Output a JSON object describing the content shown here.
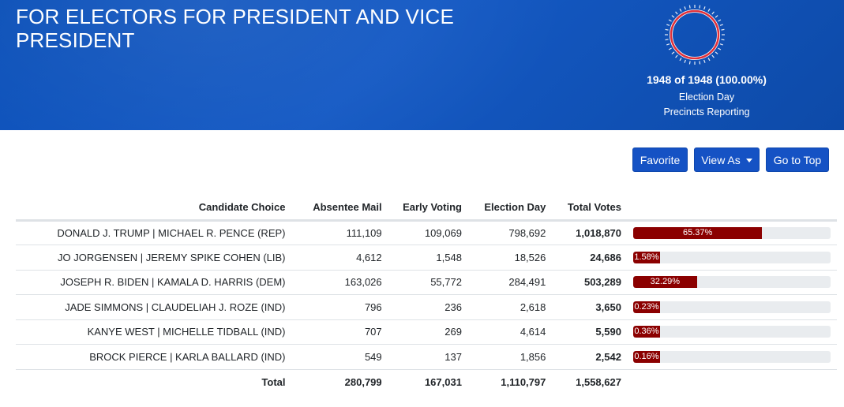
{
  "header": {
    "title": "FOR ELECTORS FOR PRESIDENT AND VICE PRESIDENT"
  },
  "reporting": {
    "count_text": "1948 of 1948 (100.00%)",
    "line1": "Election Day",
    "line2": "Precincts Reporting",
    "fraction": 1.0
  },
  "buttons": {
    "favorite": "Favorite",
    "view_as": "View As",
    "go_to_top": "Go to Top"
  },
  "table": {
    "headers": [
      "Candidate Choice",
      "Absentee Mail",
      "Early Voting",
      "Election Day",
      "Total Votes"
    ],
    "rows": [
      {
        "candidate": "DONALD J. TRUMP | MICHAEL R. PENCE (REP)",
        "absentee": "111,109",
        "early": "109,069",
        "eday": "798,692",
        "total": "1,018,870",
        "pct_label": "65.37%",
        "pct": 65.37
      },
      {
        "candidate": "JO JORGENSEN | JEREMY SPIKE COHEN (LIB)",
        "absentee": "4,612",
        "early": "1,548",
        "eday": "18,526",
        "total": "24,686",
        "pct_label": "1.58%",
        "pct": 1.58
      },
      {
        "candidate": "JOSEPH R. BIDEN | KAMALA D. HARRIS (DEM)",
        "absentee": "163,026",
        "early": "55,772",
        "eday": "284,491",
        "total": "503,289",
        "pct_label": "32.29%",
        "pct": 32.29
      },
      {
        "candidate": "JADE SIMMONS | CLAUDELIAH J. ROZE (IND)",
        "absentee": "796",
        "early": "236",
        "eday": "2,618",
        "total": "3,650",
        "pct_label": "0.23%",
        "pct": 0.23
      },
      {
        "candidate": "KANYE WEST | MICHELLE TIDBALL (IND)",
        "absentee": "707",
        "early": "269",
        "eday": "4,614",
        "total": "5,590",
        "pct_label": "0.36%",
        "pct": 0.36
      },
      {
        "candidate": "BROCK PIERCE | KARLA BALLARD (IND)",
        "absentee": "549",
        "early": "137",
        "eday": "1,856",
        "total": "2,542",
        "pct_label": "0.16%",
        "pct": 0.16
      }
    ],
    "totals": {
      "label": "Total",
      "absentee": "280,799",
      "early": "167,031",
      "eday": "1,110,797",
      "total": "1,558,627"
    }
  },
  "colors": {
    "header_blue": "#1459c4",
    "button_blue": "#1552c4",
    "bar_red": "#8b0000",
    "gauge_red": "#e0303a"
  }
}
